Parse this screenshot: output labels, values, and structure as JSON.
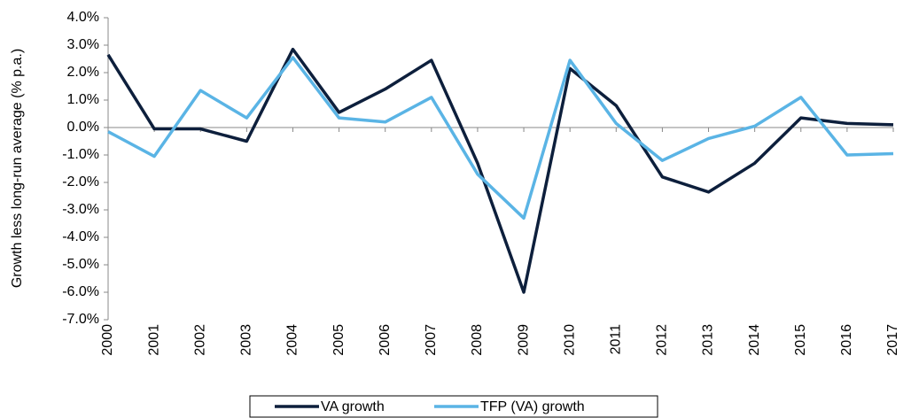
{
  "chart_data": {
    "type": "line",
    "y_label": "Growth  less long-run  average  (% p.a.)",
    "categories": [
      "2000",
      "2001",
      "2002",
      "2003",
      "2004",
      "2005",
      "2006",
      "2007",
      "2008",
      "2009",
      "2010",
      "2011",
      "2012",
      "2013",
      "2014",
      "2015",
      "2016",
      "2017"
    ],
    "series": [
      {
        "name": "VA growth",
        "color": "#0d1f3c",
        "values": [
          2.65,
          -0.05,
          -0.05,
          -0.5,
          2.85,
          0.55,
          1.4,
          2.45,
          -1.3,
          -6.0,
          2.15,
          0.8,
          -1.8,
          -2.35,
          -1.3,
          0.35,
          0.15,
          0.1
        ]
      },
      {
        "name": "TFP (VA) growth",
        "color": "#5ab4e5",
        "values": [
          -0.15,
          -1.05,
          1.35,
          0.35,
          2.55,
          0.35,
          0.2,
          1.1,
          -1.7,
          -3.3,
          2.45,
          0.15,
          -1.2,
          -0.4,
          0.05,
          1.1,
          -1.0,
          -0.95
        ]
      }
    ],
    "ylim": [
      -7,
      4
    ],
    "yticks": [
      {
        "value": 4,
        "label": "4.0%"
      },
      {
        "value": 3,
        "label": "3.0%"
      },
      {
        "value": 2,
        "label": "2.0%"
      },
      {
        "value": 1,
        "label": "1.0%"
      },
      {
        "value": 0,
        "label": "0.0%"
      },
      {
        "value": -1,
        "label": "-1.0%"
      },
      {
        "value": -2,
        "label": "-2.0%"
      },
      {
        "value": -3,
        "label": "-3.0%"
      },
      {
        "value": -4,
        "label": "-4.0%"
      },
      {
        "value": -5,
        "label": "-5.0%"
      },
      {
        "value": -6,
        "label": "-6.0%"
      },
      {
        "value": -7,
        "label": "-7.0%"
      }
    ],
    "legend": "bottom"
  }
}
